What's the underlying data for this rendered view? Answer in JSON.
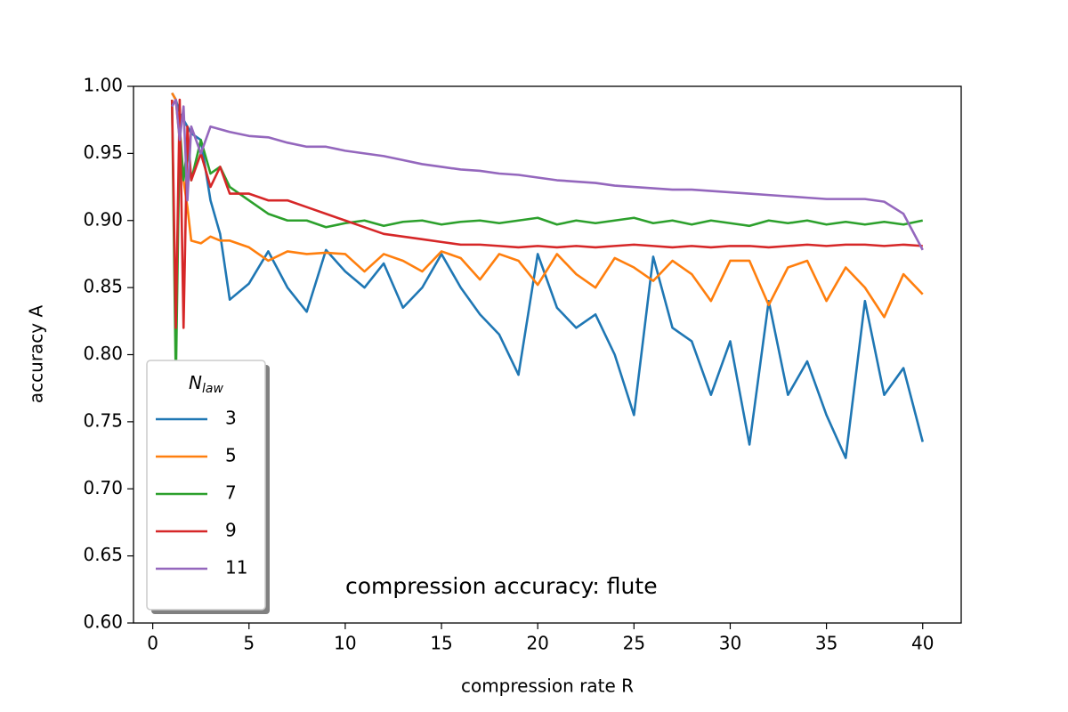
{
  "chart_data": {
    "type": "line",
    "annotation": "compression accuracy: flute",
    "x_label": "compression rate R",
    "y_label": "accuracy A",
    "legend_title": {
      "main": "N",
      "sub": "law"
    },
    "legend": "lower left",
    "x": [
      1,
      1.2,
      1.4,
      1.6,
      1.8,
      2,
      2.5,
      3,
      3.5,
      4,
      5,
      6,
      7,
      8,
      9,
      10,
      11,
      12,
      13,
      14,
      15,
      16,
      17,
      18,
      19,
      20,
      21,
      22,
      23,
      24,
      25,
      26,
      27,
      28,
      29,
      30,
      31,
      32,
      33,
      34,
      35,
      36,
      37,
      38,
      39,
      40
    ],
    "series": [
      {
        "name": "3",
        "color": "#1f77b4",
        "values": [
          0.995,
          0.99,
          0.98,
          0.975,
          0.97,
          0.965,
          0.96,
          0.915,
          0.89,
          0.841,
          0.853,
          0.877,
          0.85,
          0.832,
          0.878,
          0.862,
          0.85,
          0.868,
          0.835,
          0.85,
          0.875,
          0.85,
          0.83,
          0.815,
          0.785,
          0.875,
          0.835,
          0.82,
          0.83,
          0.8,
          0.755,
          0.873,
          0.82,
          0.81,
          0.77,
          0.81,
          0.733,
          0.84,
          0.77,
          0.795,
          0.755,
          0.723,
          0.84,
          0.77,
          0.79,
          0.735
        ]
      },
      {
        "name": "5",
        "color": "#ff7f0e",
        "values": [
          0.995,
          0.99,
          0.96,
          0.93,
          0.91,
          0.885,
          0.883,
          0.888,
          0.885,
          0.885,
          0.88,
          0.87,
          0.877,
          0.875,
          0.876,
          0.875,
          0.862,
          0.875,
          0.87,
          0.862,
          0.877,
          0.872,
          0.856,
          0.875,
          0.87,
          0.852,
          0.875,
          0.86,
          0.85,
          0.872,
          0.865,
          0.855,
          0.87,
          0.86,
          0.84,
          0.87,
          0.87,
          0.837,
          0.865,
          0.87,
          0.84,
          0.865,
          0.85,
          0.828,
          0.86,
          0.845
        ]
      },
      {
        "name": "7",
        "color": "#2ca02c",
        "values": [
          0.99,
          0.78,
          0.97,
          0.93,
          0.955,
          0.93,
          0.96,
          0.935,
          0.94,
          0.925,
          0.915,
          0.905,
          0.9,
          0.9,
          0.895,
          0.898,
          0.9,
          0.896,
          0.899,
          0.9,
          0.897,
          0.899,
          0.9,
          0.898,
          0.9,
          0.902,
          0.897,
          0.9,
          0.898,
          0.9,
          0.902,
          0.898,
          0.9,
          0.897,
          0.9,
          0.898,
          0.896,
          0.9,
          0.898,
          0.9,
          0.897,
          0.899,
          0.897,
          0.899,
          0.897,
          0.9
        ]
      },
      {
        "name": "9",
        "color": "#d62728",
        "values": [
          0.99,
          0.82,
          0.99,
          0.82,
          0.97,
          0.93,
          0.95,
          0.925,
          0.94,
          0.92,
          0.92,
          0.915,
          0.915,
          0.91,
          0.905,
          0.9,
          0.895,
          0.89,
          0.888,
          0.886,
          0.884,
          0.882,
          0.882,
          0.881,
          0.88,
          0.881,
          0.88,
          0.881,
          0.88,
          0.881,
          0.882,
          0.881,
          0.88,
          0.881,
          0.88,
          0.881,
          0.881,
          0.88,
          0.881,
          0.882,
          0.881,
          0.882,
          0.882,
          0.881,
          0.882,
          0.881
        ]
      },
      {
        "name": "11",
        "color": "#9467bd",
        "values": [
          0.985,
          0.99,
          0.96,
          0.985,
          0.915,
          0.97,
          0.95,
          0.97,
          0.968,
          0.966,
          0.963,
          0.962,
          0.958,
          0.955,
          0.955,
          0.952,
          0.95,
          0.948,
          0.945,
          0.942,
          0.94,
          0.938,
          0.937,
          0.935,
          0.934,
          0.932,
          0.93,
          0.929,
          0.928,
          0.926,
          0.925,
          0.924,
          0.923,
          0.923,
          0.922,
          0.921,
          0.92,
          0.919,
          0.918,
          0.917,
          0.916,
          0.916,
          0.916,
          0.914,
          0.905,
          0.878
        ]
      }
    ],
    "xlim": [
      -1,
      42
    ],
    "ylim": [
      0.6,
      1.0
    ],
    "xticks": [
      0,
      5,
      10,
      15,
      20,
      25,
      30,
      35,
      40
    ],
    "yticks": [
      {
        "value": 0.6,
        "label": "0.60"
      },
      {
        "value": 0.65,
        "label": "0.65"
      },
      {
        "value": 0.7,
        "label": "0.70"
      },
      {
        "value": 0.75,
        "label": "0.75"
      },
      {
        "value": 0.8,
        "label": "0.80"
      },
      {
        "value": 0.85,
        "label": "0.85"
      },
      {
        "value": 0.9,
        "label": "0.90"
      },
      {
        "value": 0.95,
        "label": "0.95"
      },
      {
        "value": 1.0,
        "label": "1.00"
      }
    ],
    "grid": false
  }
}
